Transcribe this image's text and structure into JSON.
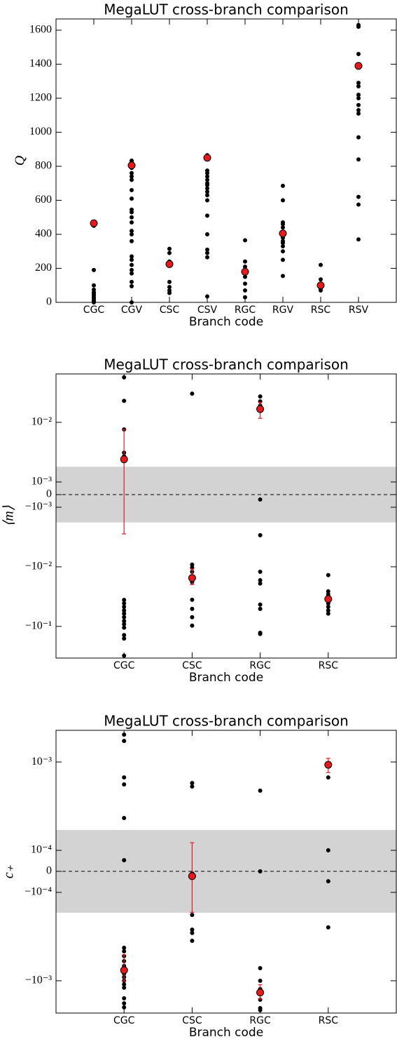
{
  "chart_data": [
    {
      "type": "strip",
      "title": "MegaLUT cross-branch comparison",
      "xlabel": "Branch code",
      "ylabel": "Q",
      "categories": [
        "CGC",
        "CGV",
        "CSC",
        "CSV",
        "RGC",
        "RGV",
        "RSC",
        "RSV"
      ],
      "values": [
        [
          450,
          190,
          100,
          75,
          60,
          50,
          40,
          30,
          20,
          10,
          5,
          0
        ],
        [
          833,
          825,
          810,
          790,
          760,
          740,
          720,
          660,
          610,
          545,
          530,
          500,
          470,
          420,
          400,
          360,
          270,
          250,
          220,
          190,
          170,
          120,
          95,
          0
        ],
        [
          315,
          290,
          240,
          120,
          90,
          70,
          55
        ],
        [
          865,
          855,
          775,
          760,
          740,
          720,
          700,
          690,
          670,
          650,
          630,
          600,
          510,
          400,
          310,
          290,
          265,
          35
        ],
        [
          365,
          240,
          210,
          150,
          110,
          70,
          30
        ],
        [
          685,
          600,
          470,
          460,
          440,
          400,
          380,
          360,
          350,
          330,
          300,
          250,
          155
        ],
        [
          220,
          135,
          110,
          80,
          70
        ],
        [
          1630,
          1620,
          1460,
          1290,
          1270,
          1220,
          1200,
          1160,
          1130,
          1110,
          970,
          840,
          620,
          575,
          370
        ]
      ],
      "means": [
        465,
        805,
        225,
        850,
        180,
        405,
        100,
        1390
      ],
      "color": "#000000",
      "mean_color": "#e41a1c",
      "ylim": [
        0,
        1666
      ],
      "yticks": [
        0,
        200,
        400,
        600,
        800,
        1000,
        1200,
        1400,
        1600
      ]
    },
    {
      "type": "strip",
      "title": "MegaLUT cross-branch comparison",
      "xlabel": "Branch code",
      "ylabel": "⟨m⟩",
      "categories": [
        "CGC",
        "CSC",
        "RGC",
        "RSC"
      ],
      "values": [
        [
          0.057,
          0.023,
          0.0076,
          0.0031,
          0.0027,
          -0.036,
          -0.041,
          -0.047,
          -0.054,
          -0.061,
          -0.07,
          -0.081,
          -0.092,
          -0.105,
          -0.14,
          -0.16,
          -0.31
        ],
        [
          0.0303,
          -0.0092,
          -0.0103,
          -0.0121,
          -0.0181,
          -0.0357,
          -0.0508,
          -0.07,
          -0.097
        ],
        [
          0.0272,
          0.0225,
          0.0191,
          -0.00039,
          -0.00295,
          -0.0121,
          -0.0168,
          -0.0191,
          -0.043,
          -0.0508,
          -0.128,
          -0.134
        ],
        [
          -0.0138,
          -0.0258,
          -0.029,
          -0.0357,
          -0.041,
          -0.047,
          -0.054,
          -0.061
        ]
      ],
      "means": [
        0.0024,
        -0.0154,
        0.0167,
        -0.0348
      ],
      "mean_errors": [
        0.0052,
        0.0045,
        0.005,
        0.003
      ],
      "color": "#000000",
      "mean_color": "#e41a1c",
      "yscale": "symlog",
      "linthresh": 0.001,
      "linscale": 0.212,
      "ylim": [
        -0.34,
        0.065
      ],
      "yticks": [
        {
          "value": 0.01,
          "label": "10⁻²"
        },
        {
          "value": 0.001,
          "label": "10⁻³"
        },
        0,
        {
          "value": -0.001,
          "label": "−10⁻³"
        },
        {
          "value": -0.01,
          "label": "−10⁻²"
        },
        {
          "value": -0.1,
          "label": "−10⁻¹"
        }
      ],
      "band": [
        -0.0018,
        0.0018
      ],
      "zero_line": true
    },
    {
      "type": "strip",
      "title": "MegaLUT cross-branch comparison",
      "xlabel": "Branch code",
      "ylabel": "c₊",
      "categories": [
        "CGC",
        "CSC",
        "RGC",
        "RSC"
      ],
      "values": [
        [
          0.00204,
          0.00173,
          0.000668,
          0.000557,
          0.000232,
          5.3e-05,
          -0.000424,
          -0.000464,
          -0.000527,
          -0.0006,
          -0.00068,
          -0.00076,
          -0.00083,
          -0.00091,
          -0.001,
          -0.0011,
          -0.0012,
          -0.00158,
          -0.0018,
          -0.002
        ],
        [
          0.000578,
          0.000527,
          -1e-05,
          -2e-05,
          -0.00018,
          -0.000264,
          -0.000288,
          -0.000353
        ],
        [
          0.000473,
          0,
          -0.00072,
          -0.001,
          -0.00124,
          -0.00164,
          -0.00204,
          -0.00215
        ],
        [
          0.000668,
          0.0001,
          -4.7e-05,
          -0.000249
        ]
      ],
      "means": [
        -0.00076,
        -2.3e-05,
        -0.00136,
        0.000929
      ],
      "mean_errors": [
        0.00025,
        0.000145,
        0.00025,
        0.00017
      ],
      "color": "#000000",
      "mean_color": "#e41a1c",
      "yscale": "symlog",
      "linthresh": 0.0001,
      "linscale": 0.238,
      "ylim": [
        -0.00232,
        0.00228
      ],
      "yticks": [
        {
          "value": 0.001,
          "label": "10⁻³"
        },
        {
          "value": 0.0001,
          "label": "10⁻⁴"
        },
        0,
        {
          "value": -0.0001,
          "label": "−10⁻⁴"
        },
        {
          "value": -0.001,
          "label": "−10⁻³"
        }
      ],
      "band": [
        -0.00017,
        0.00017
      ],
      "zero_line": true
    }
  ]
}
